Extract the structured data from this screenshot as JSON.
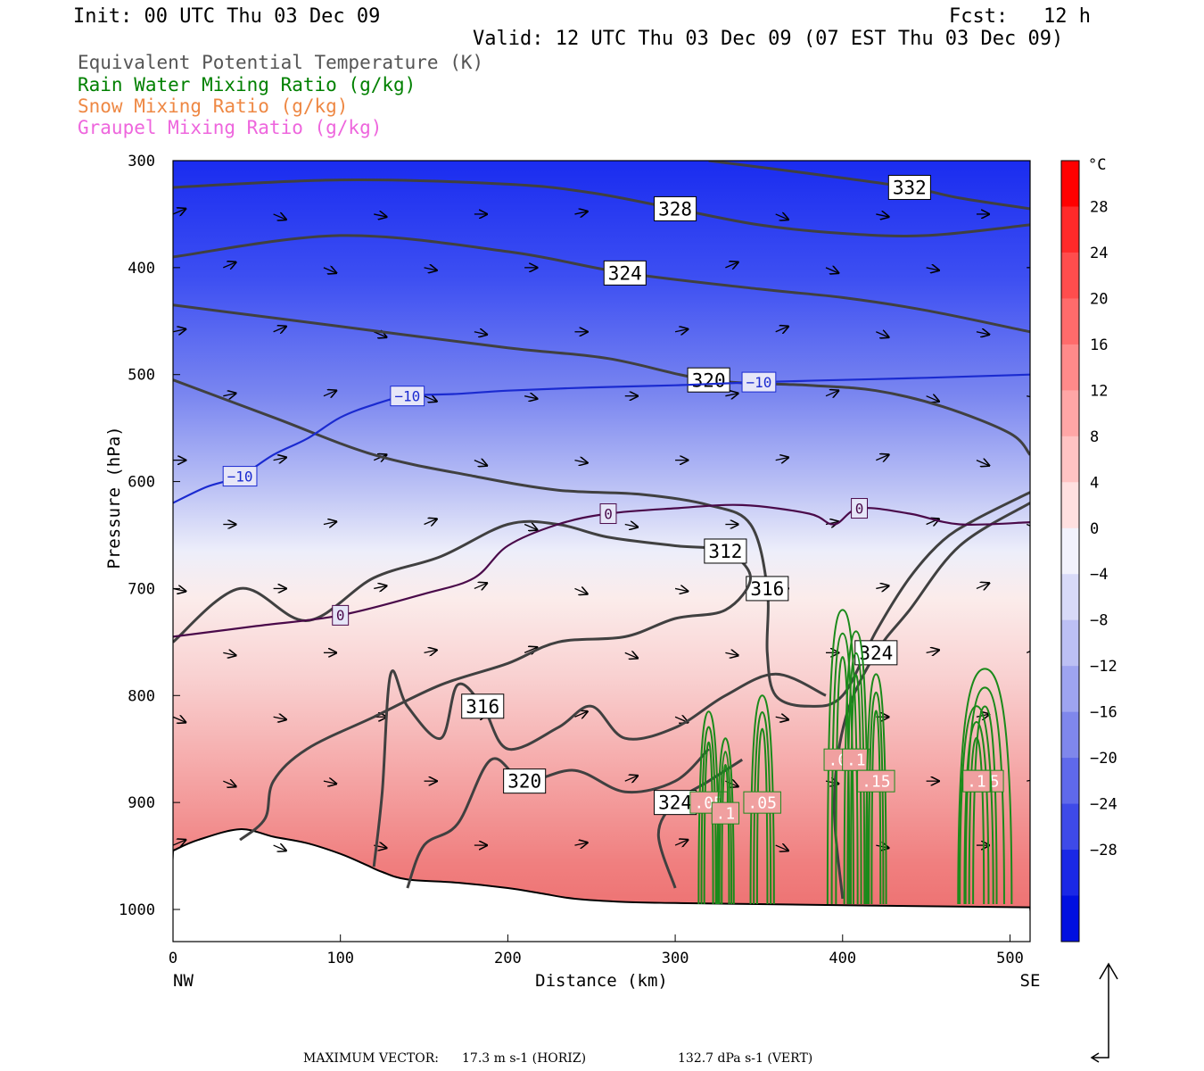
{
  "header": {
    "init": "Init: 00 UTC Thu 03 Dec 09",
    "fcst": "Fcst:   12 h",
    "valid": "Valid: 12 UTC Thu 03 Dec 09 (07 EST Thu 03 Dec 09)"
  },
  "legend": [
    {
      "text": "Equivalent Potential Temperature (K)",
      "color": "#555555"
    },
    {
      "text": "Rain Water Mixing Ratio (g/kg)",
      "color": "#008000"
    },
    {
      "text": "Snow Mixing Ratio (g/kg)",
      "color": "#ee8844"
    },
    {
      "text": "Graupel Mixing Ratio (g/kg)",
      "color": "#ee66dd"
    }
  ],
  "footer": {
    "label": "MAXIMUM VECTOR:",
    "horiz": "17.3 m s-1 (HORIZ)",
    "vert": "132.7 dPa s-1 (VERT)"
  },
  "chart_data": {
    "type": "cross-section",
    "xlabel": "Distance (km)",
    "ylabel": "Pressure (hPa)",
    "xlim": [
      0,
      512
    ],
    "ylim": [
      1030,
      300
    ],
    "x_ticks": [
      "0",
      "100",
      "200",
      "300",
      "400",
      "500"
    ],
    "y_ticks": [
      "300",
      "400",
      "500",
      "600",
      "700",
      "800",
      "900",
      "1000"
    ],
    "x_end_labels": {
      "left": "NW",
      "right": "SE"
    },
    "colorbar": {
      "unit": "°C",
      "labels": [
        "28",
        "24",
        "20",
        "16",
        "12",
        "8",
        "4",
        "0",
        "−4",
        "−8",
        "−12",
        "−16",
        "−20",
        "−24",
        "−28"
      ]
    },
    "temperature_contours": [
      {
        "label": "−10",
        "points": [
          [
            0,
            620
          ],
          [
            20,
            605
          ],
          [
            40,
            595
          ],
          [
            60,
            575
          ],
          [
            80,
            560
          ],
          [
            100,
            540
          ],
          [
            120,
            528
          ],
          [
            140,
            520
          ],
          [
            170,
            518
          ],
          [
            200,
            515
          ],
          [
            250,
            512
          ],
          [
            300,
            510
          ],
          [
            350,
            507
          ],
          [
            400,
            505
          ],
          [
            450,
            503
          ],
          [
            512,
            500
          ]
        ]
      },
      {
        "label": "0",
        "points": [
          [
            0,
            745
          ],
          [
            50,
            735
          ],
          [
            100,
            725
          ],
          [
            150,
            705
          ],
          [
            180,
            690
          ],
          [
            200,
            660
          ],
          [
            230,
            640
          ],
          [
            260,
            630
          ],
          [
            300,
            625
          ],
          [
            340,
            622
          ],
          [
            380,
            630
          ],
          [
            395,
            640
          ],
          [
            410,
            625
          ],
          [
            440,
            630
          ],
          [
            470,
            640
          ],
          [
            512,
            638
          ]
        ]
      }
    ],
    "theta_e_contours": [
      {
        "label": "328",
        "points": [
          [
            0,
            325
          ],
          [
            100,
            318
          ],
          [
            200,
            322
          ],
          [
            250,
            330
          ],
          [
            300,
            345
          ],
          [
            350,
            360
          ],
          [
            400,
            368
          ],
          [
            450,
            370
          ],
          [
            512,
            360
          ]
        ]
      },
      {
        "label": "332",
        "points": [
          [
            320,
            300
          ],
          [
            380,
            312
          ],
          [
            440,
            325
          ],
          [
            470,
            335
          ],
          [
            512,
            345
          ]
        ]
      },
      {
        "label": "324",
        "points": [
          [
            0,
            390
          ],
          [
            100,
            370
          ],
          [
            200,
            385
          ],
          [
            270,
            405
          ],
          [
            350,
            420
          ],
          [
            400,
            428
          ],
          [
            450,
            440
          ],
          [
            512,
            460
          ]
        ]
      },
      {
        "label": "320",
        "points": [
          [
            0,
            435
          ],
          [
            100,
            455
          ],
          [
            200,
            475
          ],
          [
            260,
            485
          ],
          [
            320,
            505
          ],
          [
            380,
            510
          ],
          [
            420,
            515
          ],
          [
            460,
            530
          ],
          [
            500,
            555
          ],
          [
            512,
            575
          ]
        ]
      },
      {
        "label": "316",
        "points": [
          [
            0,
            505
          ],
          [
            60,
            540
          ],
          [
            120,
            575
          ],
          [
            180,
            595
          ],
          [
            230,
            608
          ],
          [
            280,
            612
          ],
          [
            320,
            622
          ],
          [
            345,
            640
          ],
          [
            355,
            700
          ],
          [
            355,
            760
          ],
          [
            360,
            800
          ],
          [
            380,
            810
          ],
          [
            400,
            800
          ],
          [
            420,
            740
          ],
          [
            440,
            690
          ],
          [
            460,
            655
          ],
          [
            480,
            635
          ],
          [
            512,
            610
          ]
        ]
      },
      {
        "label": "312",
        "points": [
          [
            0,
            750
          ],
          [
            40,
            700
          ],
          [
            80,
            730
          ],
          [
            120,
            690
          ],
          [
            160,
            670
          ],
          [
            200,
            640
          ],
          [
            230,
            640
          ],
          [
            260,
            652
          ],
          [
            300,
            660
          ],
          [
            330,
            665
          ],
          [
            345,
            690
          ],
          [
            330,
            720
          ],
          [
            300,
            728
          ],
          [
            270,
            745
          ],
          [
            230,
            750
          ],
          [
            200,
            770
          ],
          [
            160,
            790
          ],
          [
            120,
            820
          ],
          [
            80,
            850
          ],
          [
            60,
            880
          ],
          [
            55,
            915
          ],
          [
            40,
            935
          ]
        ]
      },
      {
        "label": "316",
        "points": [
          [
            120,
            960
          ],
          [
            125,
            890
          ],
          [
            130,
            780
          ],
          [
            140,
            810
          ],
          [
            160,
            840
          ],
          [
            170,
            790
          ],
          [
            185,
            810
          ],
          [
            200,
            850
          ],
          [
            230,
            830
          ],
          [
            250,
            810
          ],
          [
            270,
            840
          ],
          [
            300,
            830
          ],
          [
            330,
            800
          ],
          [
            360,
            780
          ],
          [
            390,
            800
          ]
        ]
      },
      {
        "label": "320",
        "points": [
          [
            140,
            980
          ],
          [
            150,
            940
          ],
          [
            170,
            920
          ],
          [
            190,
            860
          ],
          [
            210,
            880
          ],
          [
            240,
            870
          ],
          [
            270,
            890
          ],
          [
            300,
            880
          ],
          [
            320,
            850
          ]
        ]
      },
      {
        "label": "324",
        "points": [
          [
            300,
            980
          ],
          [
            290,
            930
          ],
          [
            300,
            900
          ],
          [
            320,
            880
          ],
          [
            340,
            860
          ]
        ]
      },
      {
        "label": "324",
        "points": [
          [
            400,
            990
          ],
          [
            395,
            900
          ],
          [
            402,
            820
          ],
          [
            420,
            760
          ],
          [
            440,
            720
          ],
          [
            470,
            660
          ],
          [
            512,
            620
          ]
        ]
      }
    ],
    "rain_water_contours": [
      {
        "label": ".05",
        "center": [
          320,
          900
        ],
        "half_width": 6,
        "top": 815
      },
      {
        "label": ".1",
        "center": [
          330,
          910
        ],
        "half_width": 5,
        "top": 840
      },
      {
        "label": ".05",
        "center": [
          352,
          900
        ],
        "half_width": 7,
        "top": 800
      },
      {
        "label": ".05",
        "center": [
          400,
          860
        ],
        "half_width": 9,
        "top": 720
      },
      {
        "label": ".1",
        "center": [
          408,
          860
        ],
        "half_width": 7,
        "top": 740
      },
      {
        "label": ".15",
        "center": [
          420,
          880
        ],
        "half_width": 6,
        "top": 780
      },
      {
        "label": ".05",
        "center": [
          485,
          880
        ],
        "half_width": 16,
        "top": 775
      },
      {
        "label": ".1",
        "center": [
          480,
          880
        ],
        "half_width": 10,
        "top": 810
      }
    ],
    "wind_vectors_note": "arrows show horizontal and vertical wind in the section plane"
  }
}
